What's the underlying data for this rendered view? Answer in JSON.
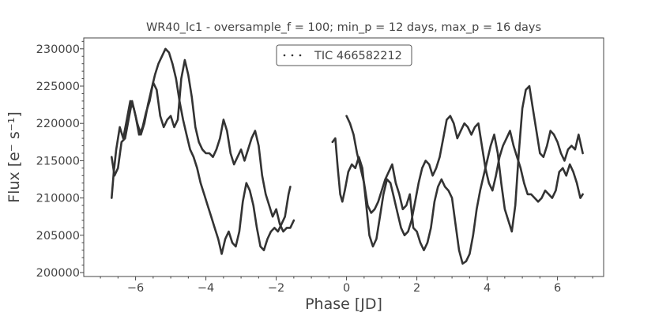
{
  "chart_data": {
    "type": "scatter",
    "title": "WR40_lc1 - oversample_f = 100; min_p = 12 days, max_p = 16 days",
    "xlabel": "Phase [JD]",
    "ylabel": "Flux [e⁻ s⁻¹]",
    "xlim": [
      -7.4,
      7.3
    ],
    "ylim": [
      199500,
      231500
    ],
    "xticks": [
      -6,
      -4,
      -2,
      0,
      2,
      4,
      6
    ],
    "xtick_labels": [
      "−6",
      "−4",
      "−2",
      "0",
      "2",
      "4",
      "6"
    ],
    "yticks": [
      200000,
      205000,
      210000,
      215000,
      220000,
      225000,
      230000
    ],
    "ytick_labels": [
      "200000",
      "205000",
      "210000",
      "215000",
      "220000",
      "225000",
      "230000"
    ],
    "grid": false,
    "legend": {
      "placement": "top-center",
      "entries": [
        "TIC 466582212"
      ]
    },
    "color": "#333333",
    "series": [
      {
        "name": "TIC 466582212",
        "segments": [
          [
            [
              -6.68,
              210000
            ],
            [
              -6.62,
              213500
            ],
            [
              -6.55,
              216500
            ],
            [
              -6.45,
              219500
            ],
            [
              -6.35,
              218000
            ],
            [
              -6.25,
              220500
            ],
            [
              -6.15,
              223000
            ],
            [
              -6.05,
              222000
            ],
            [
              -5.95,
              220000
            ],
            [
              -5.85,
              218500
            ],
            [
              -5.75,
              220000
            ],
            [
              -5.65,
              222500
            ],
            [
              -5.55,
              224500
            ],
            [
              -5.45,
              226500
            ],
            [
              -5.35,
              228000
            ],
            [
              -5.25,
              229000
            ],
            [
              -5.15,
              230000
            ],
            [
              -5.05,
              229500
            ],
            [
              -4.95,
              228000
            ],
            [
              -4.85,
              226000
            ],
            [
              -4.75,
              223000
            ],
            [
              -4.65,
              220500
            ],
            [
              -4.55,
              218500
            ],
            [
              -4.45,
              216500
            ],
            [
              -4.35,
              215500
            ],
            [
              -4.25,
              214000
            ],
            [
              -4.15,
              212000
            ],
            [
              -4.05,
              210500
            ],
            [
              -3.95,
              209000
            ],
            [
              -3.85,
              207500
            ],
            [
              -3.75,
              206000
            ],
            [
              -3.65,
              204500
            ],
            [
              -3.55,
              202500
            ],
            [
              -3.45,
              204500
            ],
            [
              -3.35,
              205500
            ],
            [
              -3.25,
              204000
            ],
            [
              -3.15,
              203500
            ],
            [
              -3.05,
              205500
            ],
            [
              -2.95,
              209500
            ],
            [
              -2.85,
              212000
            ],
            [
              -2.75,
              211000
            ],
            [
              -2.65,
              209000
            ],
            [
              -2.55,
              206000
            ],
            [
              -2.45,
              203500
            ],
            [
              -2.35,
              203000
            ],
            [
              -2.25,
              204500
            ],
            [
              -2.15,
              205500
            ],
            [
              -2.05,
              206000
            ],
            [
              -1.95,
              205500
            ],
            [
              -1.85,
              206500
            ],
            [
              -1.75,
              207500
            ],
            [
              -1.65,
              210500
            ],
            [
              -1.6,
              211500
            ]
          ],
          [
            [
              -6.68,
              215500
            ],
            [
              -6.6,
              213000
            ],
            [
              -6.5,
              214000
            ],
            [
              -6.4,
              217500
            ],
            [
              -6.3,
              218000
            ],
            [
              -6.2,
              220500
            ],
            [
              -6.1,
              223000
            ],
            [
              -6.0,
              221000
            ],
            [
              -5.9,
              218500
            ],
            [
              -5.8,
              219500
            ],
            [
              -5.7,
              221500
            ],
            [
              -5.6,
              223000
            ],
            [
              -5.5,
              225500
            ],
            [
              -5.4,
              224500
            ],
            [
              -5.3,
              221000
            ],
            [
              -5.2,
              219500
            ],
            [
              -5.1,
              220500
            ],
            [
              -5.0,
              221000
            ],
            [
              -4.9,
              219500
            ],
            [
              -4.8,
              220500
            ],
            [
              -4.7,
              226000
            ],
            [
              -4.6,
              228500
            ],
            [
              -4.5,
              226500
            ],
            [
              -4.4,
              223500
            ],
            [
              -4.3,
              219500
            ],
            [
              -4.2,
              217500
            ],
            [
              -4.1,
              216500
            ],
            [
              -4.0,
              216000
            ],
            [
              -3.9,
              216000
            ],
            [
              -3.8,
              215500
            ],
            [
              -3.7,
              216500
            ],
            [
              -3.6,
              218000
            ],
            [
              -3.5,
              220500
            ],
            [
              -3.4,
              219000
            ],
            [
              -3.3,
              216000
            ],
            [
              -3.2,
              214500
            ],
            [
              -3.1,
              215500
            ],
            [
              -3.0,
              216500
            ],
            [
              -2.9,
              215000
            ],
            [
              -2.8,
              216500
            ],
            [
              -2.7,
              218000
            ],
            [
              -2.6,
              219000
            ],
            [
              -2.5,
              217000
            ],
            [
              -2.4,
              213000
            ],
            [
              -2.3,
              210500
            ],
            [
              -2.2,
              209000
            ],
            [
              -2.1,
              207500
            ],
            [
              -2.0,
              208500
            ],
            [
              -1.9,
              206500
            ],
            [
              -1.8,
              205500
            ],
            [
              -1.7,
              206000
            ],
            [
              -1.6,
              206000
            ],
            [
              -1.5,
              207000
            ]
          ],
          [
            [
              -0.4,
              217500
            ],
            [
              -0.32,
              218000
            ],
            [
              -0.25,
              214000
            ],
            [
              -0.18,
              210500
            ],
            [
              -0.12,
              209500
            ],
            [
              -0.05,
              211000
            ],
            [
              0.05,
              213500
            ],
            [
              0.15,
              214500
            ],
            [
              0.25,
              214000
            ],
            [
              0.35,
              215500
            ],
            [
              0.45,
              214000
            ],
            [
              0.55,
              209500
            ],
            [
              0.65,
              205000
            ],
            [
              0.75,
              203500
            ],
            [
              0.85,
              204500
            ],
            [
              0.95,
              207500
            ],
            [
              1.05,
              210500
            ],
            [
              1.15,
              212500
            ],
            [
              1.25,
              212000
            ],
            [
              1.35,
              210000
            ],
            [
              1.45,
              208000
            ],
            [
              1.55,
              206000
            ],
            [
              1.65,
              205000
            ],
            [
              1.75,
              205500
            ],
            [
              1.85,
              207000
            ],
            [
              1.95,
              209500
            ],
            [
              2.05,
              212000
            ],
            [
              2.15,
              214000
            ],
            [
              2.25,
              215000
            ],
            [
              2.35,
              214500
            ],
            [
              2.45,
              213000
            ],
            [
              2.55,
              214000
            ],
            [
              2.65,
              215500
            ],
            [
              2.75,
              218000
            ],
            [
              2.85,
              220500
            ],
            [
              2.95,
              221000
            ],
            [
              3.05,
              220000
            ],
            [
              3.15,
              218000
            ],
            [
              3.25,
              219000
            ],
            [
              3.35,
              220000
            ],
            [
              3.45,
              219500
            ],
            [
              3.55,
              218500
            ],
            [
              3.65,
              219500
            ],
            [
              3.75,
              220000
            ],
            [
              3.85,
              217000
            ],
            [
              3.95,
              214000
            ],
            [
              4.05,
              212000
            ],
            [
              4.15,
              211000
            ],
            [
              4.25,
              213000
            ],
            [
              4.35,
              215500
            ],
            [
              4.45,
              217000
            ],
            [
              4.55,
              218000
            ],
            [
              4.65,
              219000
            ],
            [
              4.75,
              217000
            ],
            [
              4.85,
              215500
            ],
            [
              4.95,
              214000
            ],
            [
              5.05,
              212000
            ],
            [
              5.15,
              210500
            ],
            [
              5.25,
              210500
            ],
            [
              5.35,
              210000
            ],
            [
              5.45,
              209500
            ],
            [
              5.55,
              210000
            ],
            [
              5.65,
              211000
            ],
            [
              5.75,
              210500
            ],
            [
              5.85,
              210000
            ],
            [
              5.95,
              211000
            ],
            [
              6.05,
              213500
            ],
            [
              6.15,
              214000
            ],
            [
              6.25,
              213000
            ],
            [
              6.35,
              214500
            ],
            [
              6.45,
              213500
            ],
            [
              6.55,
              212000
            ],
            [
              6.65,
              210000
            ],
            [
              6.72,
              210500
            ]
          ],
          [
            [
              0.0,
              221000
            ],
            [
              0.1,
              220000
            ],
            [
              0.2,
              218500
            ],
            [
              0.3,
              216000
            ],
            [
              0.4,
              214000
            ],
            [
              0.5,
              212000
            ],
            [
              0.6,
              209000
            ],
            [
              0.7,
              208000
            ],
            [
              0.8,
              208500
            ],
            [
              0.9,
              209500
            ],
            [
              1.0,
              211000
            ],
            [
              1.1,
              212500
            ],
            [
              1.2,
              213500
            ],
            [
              1.3,
              214500
            ],
            [
              1.4,
              212000
            ],
            [
              1.5,
              210500
            ],
            [
              1.6,
              208500
            ],
            [
              1.7,
              209000
            ],
            [
              1.8,
              210500
            ],
            [
              1.9,
              206000
            ],
            [
              2.0,
              205500
            ],
            [
              2.1,
              204000
            ],
            [
              2.2,
              203000
            ],
            [
              2.3,
              204000
            ],
            [
              2.4,
              206000
            ],
            [
              2.5,
              209500
            ],
            [
              2.6,
              211500
            ],
            [
              2.7,
              212500
            ],
            [
              2.8,
              211500
            ],
            [
              2.9,
              211000
            ],
            [
              3.0,
              210000
            ],
            [
              3.1,
              206500
            ],
            [
              3.2,
              203000
            ],
            [
              3.3,
              201200
            ],
            [
              3.4,
              201500
            ],
            [
              3.5,
              202500
            ],
            [
              3.6,
              205000
            ],
            [
              3.7,
              208500
            ],
            [
              3.8,
              211000
            ],
            [
              3.9,
              213000
            ],
            [
              4.0,
              215000
            ],
            [
              4.1,
              217000
            ],
            [
              4.2,
              218500
            ],
            [
              4.3,
              216000
            ],
            [
              4.4,
              212000
            ],
            [
              4.5,
              208500
            ],
            [
              4.6,
              207000
            ],
            [
              4.7,
              205500
            ],
            [
              4.8,
              209000
            ],
            [
              4.9,
              216000
            ],
            [
              5.0,
              222000
            ],
            [
              5.1,
              224500
            ],
            [
              5.2,
              225000
            ],
            [
              5.3,
              222000
            ],
            [
              5.4,
              219000
            ],
            [
              5.5,
              216000
            ],
            [
              5.6,
              215500
            ],
            [
              5.7,
              217000
            ],
            [
              5.8,
              219000
            ],
            [
              5.9,
              218500
            ],
            [
              6.0,
              217500
            ],
            [
              6.1,
              216000
            ],
            [
              6.2,
              215000
            ],
            [
              6.3,
              216500
            ],
            [
              6.4,
              217000
            ],
            [
              6.5,
              216500
            ],
            [
              6.6,
              218500
            ],
            [
              6.72,
              216000
            ]
          ]
        ]
      }
    ]
  }
}
